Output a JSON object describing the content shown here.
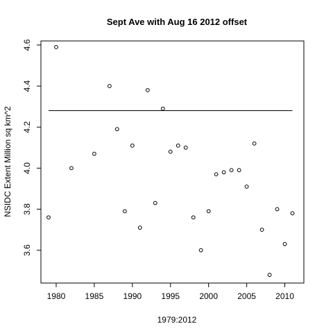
{
  "chart_data": {
    "type": "scatter",
    "title": "Sept Ave with Aug 16 2012 offset",
    "xlabel": "1979:2012",
    "ylabel": "NSIDC Extent Million sq km^2",
    "xlim": [
      1978,
      2012.5
    ],
    "ylim": [
      3.44,
      4.62
    ],
    "x_ticks": [
      1980,
      1985,
      1990,
      1995,
      2000,
      2005,
      2010
    ],
    "y_ticks": [
      3.6,
      3.8,
      4.0,
      4.2,
      4.4,
      4.6
    ],
    "x_tick_labels": [
      "1980",
      "1985",
      "1990",
      "1995",
      "2000",
      "2005",
      "2010"
    ],
    "y_tick_labels": [
      "3.6",
      "3.8",
      "4.0",
      "4.2",
      "4.4",
      "4.6"
    ],
    "points": [
      {
        "x": 1979,
        "y": 3.76
      },
      {
        "x": 1980,
        "y": 4.59
      },
      {
        "x": 1982,
        "y": 4.0
      },
      {
        "x": 1985,
        "y": 4.07
      },
      {
        "x": 1987,
        "y": 4.4
      },
      {
        "x": 1988,
        "y": 4.19
      },
      {
        "x": 1989,
        "y": 3.79
      },
      {
        "x": 1990,
        "y": 4.11
      },
      {
        "x": 1991,
        "y": 3.71
      },
      {
        "x": 1992,
        "y": 4.38
      },
      {
        "x": 1993,
        "y": 3.83
      },
      {
        "x": 1994,
        "y": 4.29
      },
      {
        "x": 1995,
        "y": 4.08
      },
      {
        "x": 1996,
        "y": 4.11
      },
      {
        "x": 1997,
        "y": 4.1
      },
      {
        "x": 1998,
        "y": 3.76
      },
      {
        "x": 1999,
        "y": 3.6
      },
      {
        "x": 2000,
        "y": 3.79
      },
      {
        "x": 2001,
        "y": 3.97
      },
      {
        "x": 2002,
        "y": 3.98
      },
      {
        "x": 2003,
        "y": 3.99
      },
      {
        "x": 2004,
        "y": 3.99
      },
      {
        "x": 2005,
        "y": 3.91
      },
      {
        "x": 2006,
        "y": 4.12
      },
      {
        "x": 2007,
        "y": 3.7
      },
      {
        "x": 2008,
        "y": 3.48
      },
      {
        "x": 2009,
        "y": 3.8
      },
      {
        "x": 2010,
        "y": 3.63
      },
      {
        "x": 2011,
        "y": 3.78
      }
    ],
    "hline": {
      "y": 4.28,
      "x_from": 1979,
      "x_to": 2011
    },
    "colors": {
      "points": "#000000",
      "line": "#000000",
      "frame": "#000000"
    },
    "marker": "open-circle",
    "grid": false,
    "legend": "none"
  }
}
